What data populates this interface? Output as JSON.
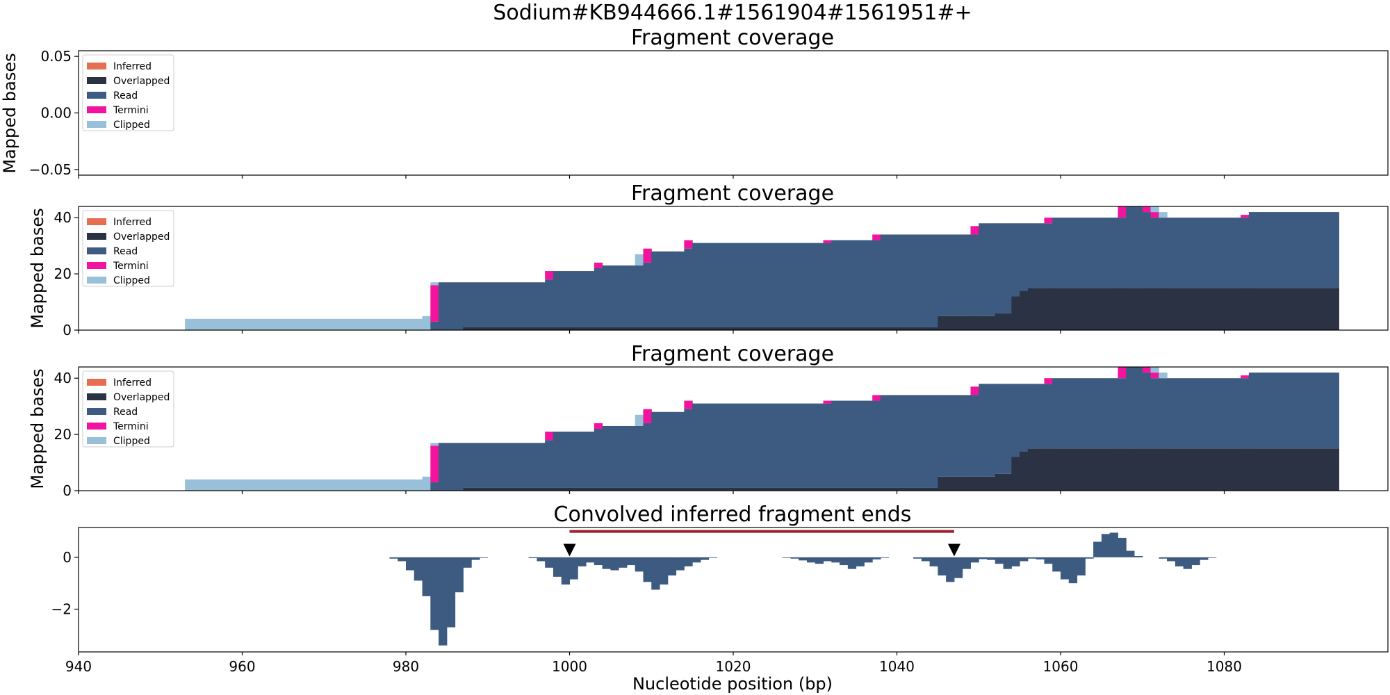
{
  "figure": {
    "suptitle": "Sodium#KB944666.1#1561904#1561951#+",
    "xlabel": "Nucleotide position (bp)"
  },
  "colors": {
    "inferred": "#e76f51",
    "overlapped": "#2a3244",
    "read": "#3d5a80",
    "termini": "#f2139f",
    "clipped": "#98c1d9",
    "interval_line": "#9b2226",
    "marker": "#000000"
  },
  "legend": {
    "entries": [
      "Inferred",
      "Overlapped",
      "Read",
      "Termini",
      "Clipped"
    ],
    "placement": "upper-left"
  },
  "chart_data": [
    {
      "type": "area",
      "title": "Fragment coverage",
      "ylabel": "Mapped bases",
      "xlim": [
        940,
        1100
      ],
      "ylim": [
        -0.055,
        0.055
      ],
      "yticks": [
        "0.05",
        "0.00",
        "−0.05"
      ],
      "ytick_values": [
        0.05,
        0.0,
        -0.05
      ],
      "legend": true,
      "segments": []
    },
    {
      "type": "area",
      "title": "Fragment coverage",
      "ylabel": "Mapped bases",
      "xlim": [
        940,
        1100
      ],
      "ylim": [
        0,
        44
      ],
      "yticks": [
        "0",
        "20",
        "40"
      ],
      "ytick_values": [
        0,
        20,
        40
      ],
      "legend": true,
      "segments": [
        {
          "x0": 953,
          "x1": 982,
          "overlapped": 0,
          "read": 0,
          "termini": 0,
          "clipped": 4
        },
        {
          "x0": 982,
          "x1": 983,
          "overlapped": 0,
          "read": 0,
          "termini": 0,
          "clipped": 5
        },
        {
          "x0": 983,
          "x1": 984,
          "overlapped": 0,
          "read": 3,
          "termini": 13,
          "clipped": 1
        },
        {
          "x0": 984,
          "x1": 987,
          "overlapped": 0,
          "read": 17,
          "termini": 0,
          "clipped": 0
        },
        {
          "x0": 987,
          "x1": 997,
          "overlapped": 1,
          "read": 16,
          "termini": 0,
          "clipped": 0
        },
        {
          "x0": 997,
          "x1": 998,
          "overlapped": 1,
          "read": 17,
          "termini": 3,
          "clipped": 0
        },
        {
          "x0": 998,
          "x1": 1003,
          "overlapped": 1,
          "read": 20,
          "termini": 0,
          "clipped": 0
        },
        {
          "x0": 1003,
          "x1": 1004,
          "overlapped": 1,
          "read": 21,
          "termini": 2,
          "clipped": 0
        },
        {
          "x0": 1004,
          "x1": 1008,
          "overlapped": 1,
          "read": 22,
          "termini": 0,
          "clipped": 0
        },
        {
          "x0": 1008,
          "x1": 1009,
          "overlapped": 1,
          "read": 22,
          "termini": 0,
          "clipped": 4
        },
        {
          "x0": 1009,
          "x1": 1010,
          "overlapped": 1,
          "read": 23,
          "termini": 5,
          "clipped": 0
        },
        {
          "x0": 1010,
          "x1": 1014,
          "overlapped": 1,
          "read": 27,
          "termini": 0,
          "clipped": 0
        },
        {
          "x0": 1014,
          "x1": 1015,
          "overlapped": 1,
          "read": 28,
          "termini": 3,
          "clipped": 0
        },
        {
          "x0": 1015,
          "x1": 1031,
          "overlapped": 1,
          "read": 30,
          "termini": 0,
          "clipped": 0
        },
        {
          "x0": 1031,
          "x1": 1032,
          "overlapped": 1,
          "read": 30,
          "termini": 1,
          "clipped": 0
        },
        {
          "x0": 1032,
          "x1": 1037,
          "overlapped": 1,
          "read": 31,
          "termini": 0,
          "clipped": 0
        },
        {
          "x0": 1037,
          "x1": 1038,
          "overlapped": 1,
          "read": 31,
          "termini": 2,
          "clipped": 0
        },
        {
          "x0": 1038,
          "x1": 1045,
          "overlapped": 1,
          "read": 33,
          "termini": 0,
          "clipped": 0
        },
        {
          "x0": 1045,
          "x1": 1049,
          "overlapped": 5,
          "read": 29,
          "termini": 0,
          "clipped": 0
        },
        {
          "x0": 1049,
          "x1": 1050,
          "overlapped": 5,
          "read": 29,
          "termini": 3,
          "clipped": 0
        },
        {
          "x0": 1050,
          "x1": 1052,
          "overlapped": 5,
          "read": 33,
          "termini": 0,
          "clipped": 0
        },
        {
          "x0": 1052,
          "x1": 1054,
          "overlapped": 6,
          "read": 32,
          "termini": 0,
          "clipped": 0
        },
        {
          "x0": 1054,
          "x1": 1055,
          "overlapped": 12,
          "read": 26,
          "termini": 0,
          "clipped": 0
        },
        {
          "x0": 1055,
          "x1": 1056,
          "overlapped": 14,
          "read": 24,
          "termini": 0,
          "clipped": 0
        },
        {
          "x0": 1056,
          "x1": 1058,
          "overlapped": 15,
          "read": 23,
          "termini": 0,
          "clipped": 0
        },
        {
          "x0": 1058,
          "x1": 1059,
          "overlapped": 15,
          "read": 23,
          "termini": 2,
          "clipped": 0
        },
        {
          "x0": 1059,
          "x1": 1067,
          "overlapped": 15,
          "read": 25,
          "termini": 0,
          "clipped": 0
        },
        {
          "x0": 1067,
          "x1": 1068,
          "overlapped": 15,
          "read": 25,
          "termini": 4,
          "clipped": 0
        },
        {
          "x0": 1068,
          "x1": 1070,
          "overlapped": 15,
          "read": 29,
          "termini": 0,
          "clipped": 0
        },
        {
          "x0": 1070,
          "x1": 1071,
          "overlapped": 15,
          "read": 27,
          "termini": 2,
          "clipped": 0
        },
        {
          "x0": 1071,
          "x1": 1072,
          "overlapped": 15,
          "read": 25,
          "termini": 2,
          "clipped": 2
        },
        {
          "x0": 1072,
          "x1": 1073,
          "overlapped": 15,
          "read": 25,
          "termini": 0,
          "clipped": 2
        },
        {
          "x0": 1073,
          "x1": 1082,
          "overlapped": 15,
          "read": 25,
          "termini": 0,
          "clipped": 0
        },
        {
          "x0": 1082,
          "x1": 1083,
          "overlapped": 15,
          "read": 25,
          "termini": 1,
          "clipped": 0
        },
        {
          "x0": 1083,
          "x1": 1094,
          "overlapped": 15,
          "read": 27,
          "termini": 0,
          "clipped": 0
        }
      ]
    },
    {
      "type": "area",
      "title": "Fragment coverage",
      "ylabel": "Mapped bases",
      "xlim": [
        940,
        1100
      ],
      "ylim": [
        0,
        44
      ],
      "yticks": [
        "0",
        "20",
        "40"
      ],
      "ytick_values": [
        0,
        20,
        40
      ],
      "legend": true,
      "segments": [
        {
          "x0": 953,
          "x1": 982,
          "overlapped": 0,
          "read": 0,
          "termini": 0,
          "clipped": 4
        },
        {
          "x0": 982,
          "x1": 983,
          "overlapped": 0,
          "read": 0,
          "termini": 0,
          "clipped": 5
        },
        {
          "x0": 983,
          "x1": 984,
          "overlapped": 0,
          "read": 3,
          "termini": 13,
          "clipped": 1
        },
        {
          "x0": 984,
          "x1": 987,
          "overlapped": 0,
          "read": 17,
          "termini": 0,
          "clipped": 0
        },
        {
          "x0": 987,
          "x1": 997,
          "overlapped": 1,
          "read": 16,
          "termini": 0,
          "clipped": 0
        },
        {
          "x0": 997,
          "x1": 998,
          "overlapped": 1,
          "read": 17,
          "termini": 3,
          "clipped": 0
        },
        {
          "x0": 998,
          "x1": 1003,
          "overlapped": 1,
          "read": 20,
          "termini": 0,
          "clipped": 0
        },
        {
          "x0": 1003,
          "x1": 1004,
          "overlapped": 1,
          "read": 21,
          "termini": 2,
          "clipped": 0
        },
        {
          "x0": 1004,
          "x1": 1008,
          "overlapped": 1,
          "read": 22,
          "termini": 0,
          "clipped": 0
        },
        {
          "x0": 1008,
          "x1": 1009,
          "overlapped": 1,
          "read": 22,
          "termini": 0,
          "clipped": 4
        },
        {
          "x0": 1009,
          "x1": 1010,
          "overlapped": 1,
          "read": 23,
          "termini": 5,
          "clipped": 0
        },
        {
          "x0": 1010,
          "x1": 1014,
          "overlapped": 1,
          "read": 27,
          "termini": 0,
          "clipped": 0
        },
        {
          "x0": 1014,
          "x1": 1015,
          "overlapped": 1,
          "read": 28,
          "termini": 3,
          "clipped": 0
        },
        {
          "x0": 1015,
          "x1": 1031,
          "overlapped": 1,
          "read": 30,
          "termini": 0,
          "clipped": 0
        },
        {
          "x0": 1031,
          "x1": 1032,
          "overlapped": 1,
          "read": 30,
          "termini": 1,
          "clipped": 0
        },
        {
          "x0": 1032,
          "x1": 1037,
          "overlapped": 1,
          "read": 31,
          "termini": 0,
          "clipped": 0
        },
        {
          "x0": 1037,
          "x1": 1038,
          "overlapped": 1,
          "read": 31,
          "termini": 2,
          "clipped": 0
        },
        {
          "x0": 1038,
          "x1": 1045,
          "overlapped": 1,
          "read": 33,
          "termini": 0,
          "clipped": 0
        },
        {
          "x0": 1045,
          "x1": 1049,
          "overlapped": 5,
          "read": 29,
          "termini": 0,
          "clipped": 0
        },
        {
          "x0": 1049,
          "x1": 1050,
          "overlapped": 5,
          "read": 29,
          "termini": 3,
          "clipped": 0
        },
        {
          "x0": 1050,
          "x1": 1052,
          "overlapped": 5,
          "read": 33,
          "termini": 0,
          "clipped": 0
        },
        {
          "x0": 1052,
          "x1": 1054,
          "overlapped": 6,
          "read": 32,
          "termini": 0,
          "clipped": 0
        },
        {
          "x0": 1054,
          "x1": 1055,
          "overlapped": 12,
          "read": 26,
          "termini": 0,
          "clipped": 0
        },
        {
          "x0": 1055,
          "x1": 1056,
          "overlapped": 14,
          "read": 24,
          "termini": 0,
          "clipped": 0
        },
        {
          "x0": 1056,
          "x1": 1058,
          "overlapped": 15,
          "read": 23,
          "termini": 0,
          "clipped": 0
        },
        {
          "x0": 1058,
          "x1": 1059,
          "overlapped": 15,
          "read": 23,
          "termini": 2,
          "clipped": 0
        },
        {
          "x0": 1059,
          "x1": 1067,
          "overlapped": 15,
          "read": 25,
          "termini": 0,
          "clipped": 0
        },
        {
          "x0": 1067,
          "x1": 1068,
          "overlapped": 15,
          "read": 25,
          "termini": 4,
          "clipped": 0
        },
        {
          "x0": 1068,
          "x1": 1070,
          "overlapped": 15,
          "read": 29,
          "termini": 0,
          "clipped": 0
        },
        {
          "x0": 1070,
          "x1": 1071,
          "overlapped": 15,
          "read": 27,
          "termini": 2,
          "clipped": 0
        },
        {
          "x0": 1071,
          "x1": 1072,
          "overlapped": 15,
          "read": 25,
          "termini": 2,
          "clipped": 2
        },
        {
          "x0": 1072,
          "x1": 1073,
          "overlapped": 15,
          "read": 25,
          "termini": 0,
          "clipped": 2
        },
        {
          "x0": 1073,
          "x1": 1082,
          "overlapped": 15,
          "read": 25,
          "termini": 0,
          "clipped": 0
        },
        {
          "x0": 1082,
          "x1": 1083,
          "overlapped": 15,
          "read": 25,
          "termini": 1,
          "clipped": 0
        },
        {
          "x0": 1083,
          "x1": 1094,
          "overlapped": 15,
          "read": 27,
          "termini": 0,
          "clipped": 0
        }
      ]
    },
    {
      "type": "bar",
      "title": "Convolved inferred fragment ends",
      "xlim": [
        940,
        1100
      ],
      "ylim": [
        -3.65,
        1.15
      ],
      "yticks": [
        "0",
        "−2"
      ],
      "ytick_values": [
        0,
        -2
      ],
      "xticks": [
        "940",
        "960",
        "980",
        "1000",
        "1020",
        "1040",
        "1060",
        "1080"
      ],
      "xtick_values": [
        940,
        960,
        980,
        1000,
        1020,
        1040,
        1060,
        1080
      ],
      "x_start": 978,
      "values": [
        -0.05,
        -0.15,
        -0.5,
        -0.9,
        -1.5,
        -2.8,
        -3.4,
        -2.7,
        -1.35,
        -0.4,
        -0.1,
        -0.02,
        null,
        null,
        null,
        null,
        null,
        -0.03,
        -0.15,
        -0.4,
        -0.75,
        -1.05,
        -0.85,
        -0.35,
        -0.2,
        -0.3,
        -0.45,
        -0.5,
        -0.4,
        -0.3,
        -0.55,
        -0.95,
        -1.25,
        -1.05,
        -0.7,
        -0.5,
        -0.35,
        -0.2,
        -0.1,
        -0.02,
        null,
        null,
        null,
        null,
        null,
        null,
        null,
        null,
        -0.02,
        -0.05,
        -0.12,
        -0.2,
        -0.25,
        -0.15,
        -0.2,
        -0.3,
        -0.45,
        -0.35,
        -0.2,
        -0.08,
        -0.02,
        null,
        null,
        null,
        -0.05,
        -0.15,
        -0.35,
        -0.7,
        -0.95,
        -0.8,
        -0.45,
        -0.2,
        -0.07,
        -0.1,
        -0.25,
        -0.45,
        -0.35,
        -0.15,
        -0.05,
        -0.08,
        -0.25,
        -0.55,
        -0.85,
        -1.0,
        -0.7,
        -0.05,
        0.6,
        0.9,
        0.95,
        0.75,
        0.25,
        0.05,
        null,
        null,
        -0.05,
        -0.15,
        -0.35,
        -0.45,
        -0.3,
        -0.1,
        -0.02
      ],
      "interval": {
        "x0": 1000,
        "x1": 1047,
        "y": 1.0
      },
      "markers": [
        {
          "x": 1000,
          "y": 0.28
        },
        {
          "x": 1047,
          "y": 0.28
        }
      ]
    }
  ]
}
